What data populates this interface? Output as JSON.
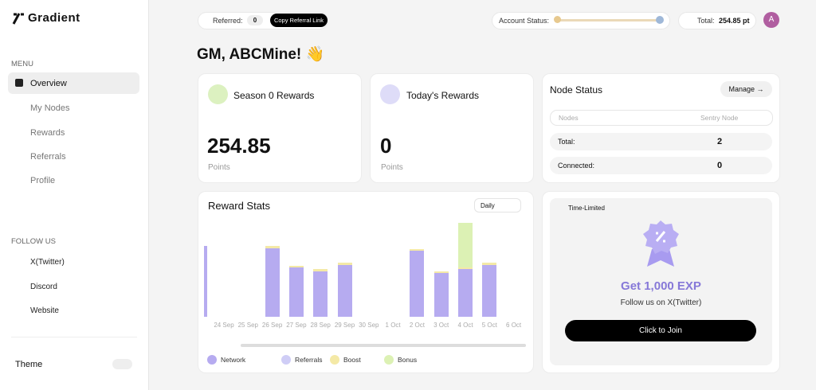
{
  "sidebar": {
    "logo": "Gradient",
    "menu_label": "MENU",
    "menu": [
      "Overview",
      "My Nodes",
      "Rewards",
      "Referrals",
      "Profile"
    ],
    "follow_label": "FOLLOW US",
    "links": [
      "X(Twitter)",
      "Discord",
      "Website"
    ],
    "theme": "Theme"
  },
  "topbar": {
    "referred_label": "Referred:",
    "referred_count": 0,
    "copy_button": "Copy Referral Link",
    "account_status": "Account Status:",
    "total_label": "Total:",
    "total_value": "254.85 pt",
    "avatar": "A"
  },
  "greeting": "GM, ABCMine! 👋",
  "cards": [
    {
      "title": "Season 0 Rewards",
      "value": 254.85,
      "unit": "Points"
    },
    {
      "title": "Today's Rewards",
      "value": 0,
      "unit": "Points"
    }
  ],
  "node_status": {
    "title": "Node Status",
    "manage": "Manage →",
    "header": [
      "Nodes",
      "Sentry Node"
    ],
    "rows": [
      [
        "Total:",
        2
      ],
      [
        "Connected:",
        0
      ]
    ]
  },
  "reward_stats": {
    "dropdown": "Daily"
  },
  "chart_data": {
    "type": "bar",
    "stacked": true,
    "title": "Reward Stats",
    "categories": [
      null,
      "24 Sep",
      "25 Sep",
      "26 Sep",
      "27 Sep",
      "28 Sep",
      "29 Sep",
      "30 Sep",
      "1 Oct",
      "2 Oct",
      "3 Oct",
      "4 Oct",
      "5 Oct",
      "6 Oct"
    ],
    "series": [
      {
        "name": "Network",
        "color": "#b6abf0",
        "values": [
          88,
          0,
          0,
          85,
          61,
          57,
          64,
          0,
          0,
          82,
          55,
          59,
          64,
          0
        ]
      },
      {
        "name": "Referrals",
        "color": "#cfcdf6",
        "values": [
          0,
          0,
          0,
          0,
          0,
          0,
          0,
          0,
          0,
          0,
          0,
          0,
          0,
          0
        ]
      },
      {
        "name": "Boost",
        "color": "#f4e9a6",
        "values": [
          0,
          0,
          0,
          3,
          2,
          2,
          3,
          0,
          0,
          2,
          2,
          2,
          3,
          0
        ]
      },
      {
        "name": "Bonus",
        "color": "#dcf1b4",
        "values": [
          0,
          0,
          0,
          0,
          0,
          0,
          0,
          0,
          0,
          0,
          0,
          56,
          0,
          0
        ]
      }
    ]
  },
  "promo": {
    "badge": "Time-Limited",
    "title": "Get 1,000 EXP",
    "subtitle": "Follow us on X(Twitter)",
    "button": "Click to Join"
  }
}
